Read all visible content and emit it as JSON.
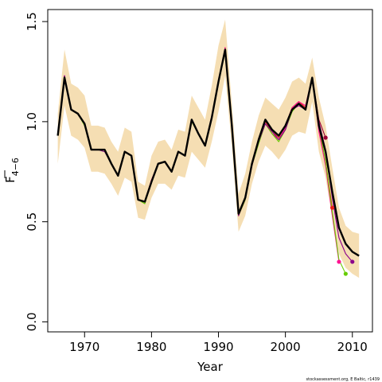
{
  "chart_data": {
    "type": "line",
    "title": "",
    "xlabel": "Year",
    "ylabel": {
      "main": "F",
      "sub": "4−6"
    },
    "xlim": [
      1964.5,
      2013
    ],
    "ylim": [
      -0.05,
      1.56
    ],
    "x_ticks": [
      1970,
      1980,
      1990,
      2000,
      2010
    ],
    "y_ticks": [
      0.0,
      0.5,
      1.0,
      1.5
    ],
    "y_tick_labels": [
      "0.0",
      "0.5",
      "1.0",
      "1.5"
    ],
    "grid": false,
    "legend": "none",
    "band_color": "#f5deb3",
    "main_line_color": "#000000",
    "source_note": "stockassessment.org, E Baltic, r1439",
    "confidence_band": {
      "x": [
        1966,
        1967,
        1968,
        1969,
        1970,
        1971,
        1972,
        1973,
        1974,
        1975,
        1976,
        1977,
        1978,
        1979,
        1980,
        1981,
        1982,
        1983,
        1984,
        1985,
        1986,
        1987,
        1988,
        1989,
        1990,
        1991,
        1992,
        1993,
        1994,
        1995,
        1996,
        1997,
        1998,
        1999,
        2000,
        2001,
        2002,
        2003,
        2004,
        2005,
        2006,
        2007,
        2008,
        2009,
        2010,
        2011
      ],
      "lower": [
        0.79,
        1.08,
        0.93,
        0.91,
        0.87,
        0.75,
        0.75,
        0.74,
        0.69,
        0.63,
        0.72,
        0.7,
        0.52,
        0.51,
        0.62,
        0.69,
        0.69,
        0.66,
        0.73,
        0.72,
        0.85,
        0.81,
        0.77,
        0.9,
        1.05,
        1.23,
        0.88,
        0.45,
        0.53,
        0.69,
        0.8,
        0.88,
        0.85,
        0.81,
        0.86,
        0.93,
        0.95,
        0.94,
        1.1,
        0.85,
        0.72,
        0.52,
        0.34,
        0.27,
        0.24,
        0.22
      ],
      "upper": [
        1.04,
        1.36,
        1.19,
        1.17,
        1.13,
        0.98,
        0.98,
        0.97,
        0.9,
        0.85,
        0.97,
        0.95,
        0.7,
        0.68,
        0.83,
        0.9,
        0.91,
        0.86,
        0.96,
        0.95,
        1.13,
        1.07,
        1.01,
        1.18,
        1.38,
        1.51,
        1.09,
        0.64,
        0.74,
        0.9,
        1.03,
        1.12,
        1.09,
        1.06,
        1.12,
        1.2,
        1.22,
        1.19,
        1.32,
        1.12,
        0.98,
        0.77,
        0.57,
        0.48,
        0.45,
        0.44
      ]
    },
    "series": [
      {
        "color": "#000000",
        "x": [
          1966,
          1967,
          1968,
          1969,
          1970,
          1971,
          1972,
          1973,
          1974,
          1975,
          1976,
          1977,
          1978,
          1979,
          1980,
          1981,
          1982,
          1983,
          1984,
          1985,
          1986,
          1987,
          1988,
          1989,
          1990,
          1991,
          1992,
          1993,
          1994,
          1995,
          1996,
          1997,
          1998,
          1999,
          2000,
          2001,
          2002,
          2003,
          2004,
          2005,
          2006,
          2007,
          2008,
          2009,
          2010,
          2011
        ],
        "y": [
          0.93,
          1.22,
          1.06,
          1.04,
          0.99,
          0.86,
          0.86,
          0.86,
          0.79,
          0.73,
          0.85,
          0.83,
          0.61,
          0.6,
          0.7,
          0.79,
          0.8,
          0.75,
          0.85,
          0.83,
          1.01,
          0.94,
          0.88,
          1.02,
          1.2,
          1.36,
          0.98,
          0.54,
          0.62,
          0.79,
          0.91,
          1.01,
          0.96,
          0.93,
          0.98,
          1.06,
          1.09,
          1.06,
          1.22,
          0.98,
          0.85,
          0.65,
          0.47,
          0.39,
          0.35,
          0.33
        ]
      },
      {
        "color": "#8b008b",
        "x": [
          1966,
          1967,
          1968,
          1969,
          1970,
          1971,
          1972,
          1973,
          1974,
          1975,
          1976,
          1977,
          1978,
          1979,
          1980,
          1981,
          1982,
          1983,
          1984,
          1985,
          1986,
          1987,
          1988,
          1989,
          1990,
          1991,
          1992,
          1993,
          1994,
          1995,
          1996,
          1997,
          1998,
          1999,
          2000,
          2001,
          2002,
          2003,
          2004,
          2005,
          2006,
          2007,
          2008,
          2009,
          2010
        ],
        "y": [
          0.94,
          1.23,
          1.06,
          1.04,
          0.99,
          0.86,
          0.86,
          0.85,
          0.79,
          0.73,
          0.85,
          0.83,
          0.61,
          0.6,
          0.7,
          0.79,
          0.8,
          0.75,
          0.85,
          0.83,
          1.01,
          0.94,
          0.88,
          1.02,
          1.2,
          1.36,
          0.98,
          0.53,
          0.62,
          0.78,
          0.9,
          0.99,
          0.95,
          0.91,
          0.96,
          1.06,
          1.08,
          1.06,
          1.21,
          1.0,
          0.86,
          0.62,
          0.42,
          0.34,
          0.3
        ],
        "end_point": [
          2010,
          0.3
        ]
      },
      {
        "color": "#66cc00",
        "x": [
          1966,
          1967,
          1968,
          1969,
          1970,
          1971,
          1972,
          1973,
          1974,
          1975,
          1976,
          1977,
          1978,
          1979,
          1980,
          1981,
          1982,
          1983,
          1984,
          1985,
          1986,
          1987,
          1988,
          1989,
          1990,
          1991,
          1992,
          1993,
          1994,
          1995,
          1996,
          1997,
          1998,
          1999,
          2000,
          2001,
          2002,
          2003,
          2004,
          2005,
          2006,
          2007,
          2008,
          2009
        ],
        "y": [
          0.93,
          1.22,
          1.06,
          1.04,
          0.98,
          0.86,
          0.86,
          0.85,
          0.79,
          0.73,
          0.85,
          0.83,
          0.61,
          0.59,
          0.7,
          0.79,
          0.8,
          0.75,
          0.85,
          0.83,
          1.0,
          0.94,
          0.88,
          1.02,
          1.19,
          1.35,
          0.97,
          0.53,
          0.61,
          0.78,
          0.89,
          0.99,
          0.94,
          0.9,
          0.96,
          1.05,
          1.09,
          1.06,
          1.21,
          0.98,
          0.8,
          0.55,
          0.31,
          0.24
        ],
        "end_point": [
          2009,
          0.24
        ]
      },
      {
        "color": "#ff1493",
        "x": [
          1966,
          1967,
          1968,
          1969,
          1970,
          1971,
          1972,
          1973,
          1974,
          1975,
          1976,
          1977,
          1978,
          1979,
          1980,
          1981,
          1982,
          1983,
          1984,
          1985,
          1986,
          1987,
          1988,
          1989,
          1990,
          1991,
          1992,
          1993,
          1994,
          1995,
          1996,
          1997,
          1998,
          1999,
          2000,
          2001,
          2002,
          2003,
          2004,
          2005,
          2006,
          2007,
          2008
        ],
        "y": [
          0.94,
          1.23,
          1.06,
          1.04,
          0.99,
          0.86,
          0.86,
          0.86,
          0.79,
          0.73,
          0.85,
          0.83,
          0.61,
          0.6,
          0.71,
          0.79,
          0.8,
          0.75,
          0.85,
          0.83,
          1.01,
          0.94,
          0.88,
          1.03,
          1.2,
          1.37,
          0.98,
          0.53,
          0.61,
          0.78,
          0.9,
          0.99,
          0.94,
          0.91,
          0.97,
          1.07,
          1.1,
          1.08,
          1.22,
          0.95,
          0.78,
          0.53,
          0.3
        ],
        "end_point": [
          2008,
          0.3
        ]
      },
      {
        "color": "#e8221b",
        "x": [
          1966,
          1967,
          1968,
          1969,
          1970,
          1971,
          1972,
          1973,
          1974,
          1975,
          1976,
          1977,
          1978,
          1979,
          1980,
          1981,
          1982,
          1983,
          1984,
          1985,
          1986,
          1987,
          1988,
          1989,
          1990,
          1991,
          1992,
          1993,
          1994,
          1995,
          1996,
          1997,
          1998,
          1999,
          2000,
          2001,
          2002,
          2003,
          2004,
          2005,
          2006,
          2007
        ],
        "y": [
          0.94,
          1.23,
          1.06,
          1.04,
          0.99,
          0.86,
          0.86,
          0.86,
          0.79,
          0.73,
          0.85,
          0.83,
          0.61,
          0.6,
          0.7,
          0.79,
          0.8,
          0.75,
          0.85,
          0.83,
          1.01,
          0.94,
          0.88,
          1.02,
          1.2,
          1.37,
          0.98,
          0.54,
          0.62,
          0.79,
          0.91,
          1.0,
          0.95,
          0.92,
          0.98,
          1.07,
          1.1,
          1.07,
          1.22,
          0.97,
          0.8,
          0.57
        ],
        "end_point": [
          2007,
          0.57
        ]
      },
      {
        "color": "#990033",
        "x": [
          1966,
          1967,
          1968,
          1969,
          1970,
          1971,
          1972,
          1973,
          1974,
          1975,
          1976,
          1977,
          1978,
          1979,
          1980,
          1981,
          1982,
          1983,
          1984,
          1985,
          1986,
          1987,
          1988,
          1989,
          1990,
          1991,
          1992,
          1993,
          1994,
          1995,
          1996,
          1997,
          1998,
          1999,
          2000,
          2001,
          2002,
          2003,
          2004,
          2005,
          2006
        ],
        "y": [
          0.94,
          1.22,
          1.06,
          1.04,
          0.99,
          0.86,
          0.86,
          0.86,
          0.79,
          0.73,
          0.85,
          0.83,
          0.61,
          0.6,
          0.7,
          0.79,
          0.8,
          0.75,
          0.85,
          0.83,
          1.01,
          0.94,
          0.88,
          1.02,
          1.2,
          1.36,
          0.98,
          0.54,
          0.62,
          0.79,
          0.91,
          1.01,
          0.96,
          0.93,
          0.98,
          1.07,
          1.1,
          1.07,
          1.22,
          1.01,
          0.92
        ],
        "end_point": [
          2006,
          0.92
        ]
      }
    ]
  }
}
